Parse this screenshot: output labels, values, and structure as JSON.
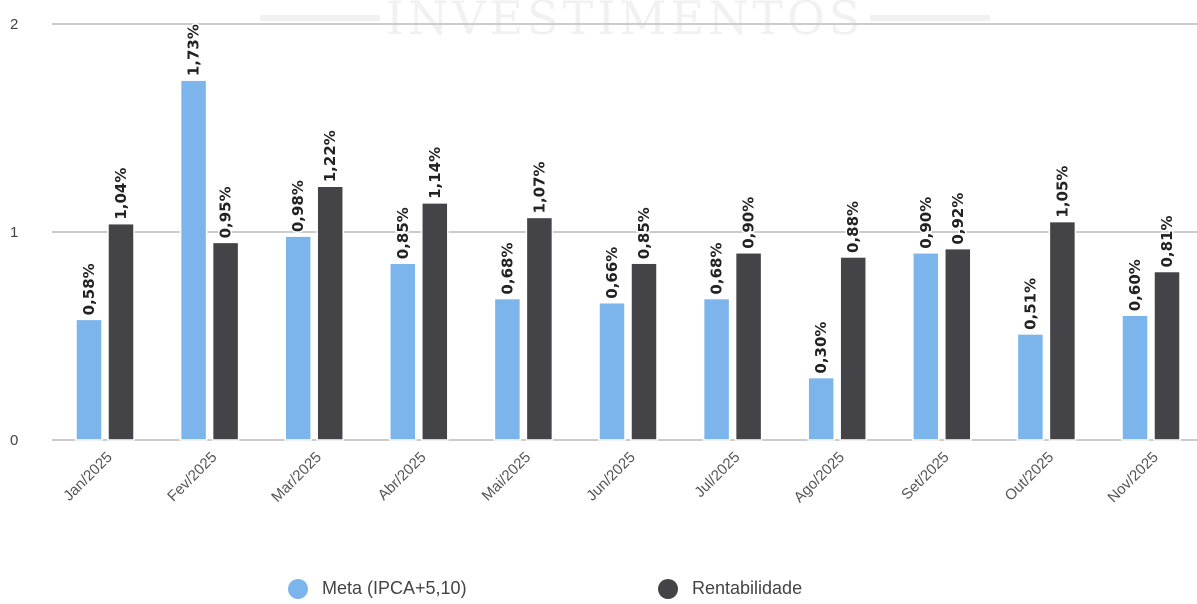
{
  "watermark": "INVESTIMENTOS",
  "chart_data": {
    "type": "bar",
    "categories": [
      "Jan/2025",
      "Fev/2025",
      "Mar/2025",
      "Abr/2025",
      "Mai/2025",
      "Jun/2025",
      "Jul/2025",
      "Ago/2025",
      "Set/2025",
      "Out/2025",
      "Nov/2025"
    ],
    "series": [
      {
        "name": "Meta (IPCA+5,10)",
        "color": "#7cb5ec",
        "values": [
          0.58,
          1.73,
          0.98,
          0.85,
          0.68,
          0.66,
          0.68,
          0.3,
          0.9,
          0.51,
          0.6
        ],
        "labels": [
          "0,58%",
          "1,73%",
          "0,98%",
          "0,85%",
          "0,68%",
          "0,66%",
          "0,68%",
          "0,30%",
          "0,90%",
          "0,51%",
          "0,60%"
        ]
      },
      {
        "name": "Rentabilidade",
        "color": "#434348",
        "values": [
          1.04,
          0.95,
          1.22,
          1.14,
          1.07,
          0.85,
          0.9,
          0.88,
          0.92,
          1.05,
          0.81
        ],
        "labels": [
          "1,04%",
          "0,95%",
          "1,22%",
          "1,14%",
          "1,07%",
          "0,85%",
          "0,90%",
          "0,88%",
          "0,92%",
          "1,05%",
          "0,81%"
        ]
      }
    ],
    "yticks": [
      "0",
      "1",
      "2"
    ],
    "ylim": [
      0,
      2
    ],
    "xlabel": "",
    "ylabel": "",
    "grid": true,
    "legend_position": "bottom-center"
  }
}
